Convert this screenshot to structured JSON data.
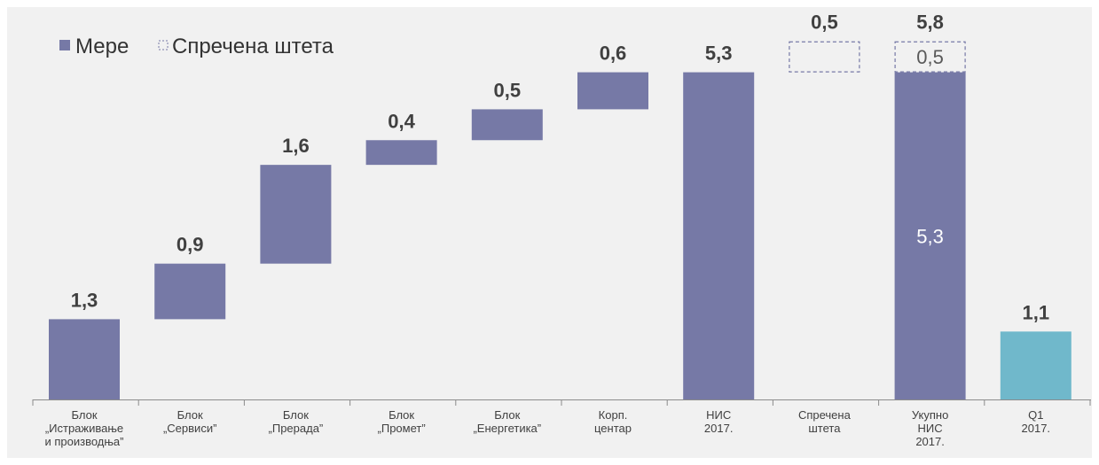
{
  "chart_data": {
    "type": "bar",
    "subtype": "waterfall",
    "title": "",
    "xlabel": "",
    "ylabel": "",
    "ylim": [
      0,
      5.8
    ],
    "grid": false,
    "legend_position": "top-left",
    "legend": [
      {
        "name": "Мере",
        "style": "solid",
        "color": "#7679a6"
      },
      {
        "name": "Спречена штета",
        "style": "dashed-outline",
        "color": "#7679a6"
      }
    ],
    "categories": [
      [
        "Блок",
        "„Истраживање",
        "и производња”"
      ],
      [
        "Блок",
        "„Сервиси”"
      ],
      [
        "Блок",
        "„Прерада”"
      ],
      [
        "Блок",
        "„Промет”"
      ],
      [
        "Блок",
        "„Енергетика”"
      ],
      [
        "Корп.",
        "центар"
      ],
      [
        "НИС",
        "2017."
      ],
      [
        "Спречена",
        "штета"
      ],
      [
        "Укупно",
        "НИС",
        "2017."
      ],
      [
        "Q1",
        "2017."
      ]
    ],
    "bars": [
      {
        "base": 0.0,
        "value": 1.3,
        "label": "1,3",
        "style": "solid",
        "color": "#7679a6"
      },
      {
        "base": 1.3,
        "value": 0.9,
        "label": "0,9",
        "style": "solid",
        "color": "#7679a6"
      },
      {
        "base": 2.2,
        "value": 1.6,
        "label": "1,6",
        "style": "solid",
        "color": "#7679a6"
      },
      {
        "base": 3.8,
        "value": 0.4,
        "label": "0,4",
        "style": "solid",
        "color": "#7679a6"
      },
      {
        "base": 4.2,
        "value": 0.5,
        "label": "0,5",
        "style": "solid",
        "color": "#7679a6"
      },
      {
        "base": 4.7,
        "value": 0.6,
        "label": "0,6",
        "style": "solid",
        "color": "#7679a6"
      },
      {
        "base": 0.0,
        "value": 5.3,
        "label": "5,3",
        "style": "solid",
        "color": "#7679a6"
      },
      {
        "base": 5.3,
        "value": 0.5,
        "label": "0,5",
        "style": "dashed",
        "color": "#7679a6"
      },
      {
        "base": 0.0,
        "value": 5.8,
        "label": "5,8",
        "style": "stacked",
        "color": "#7679a6",
        "segments": [
          {
            "value": 5.3,
            "label": "5,3",
            "style": "solid"
          },
          {
            "value": 0.5,
            "label": "0,5",
            "style": "dashed"
          }
        ]
      },
      {
        "base": 0.0,
        "value": 1.1,
        "label": "1,1",
        "style": "solid",
        "color": "#70b8cb"
      }
    ]
  }
}
